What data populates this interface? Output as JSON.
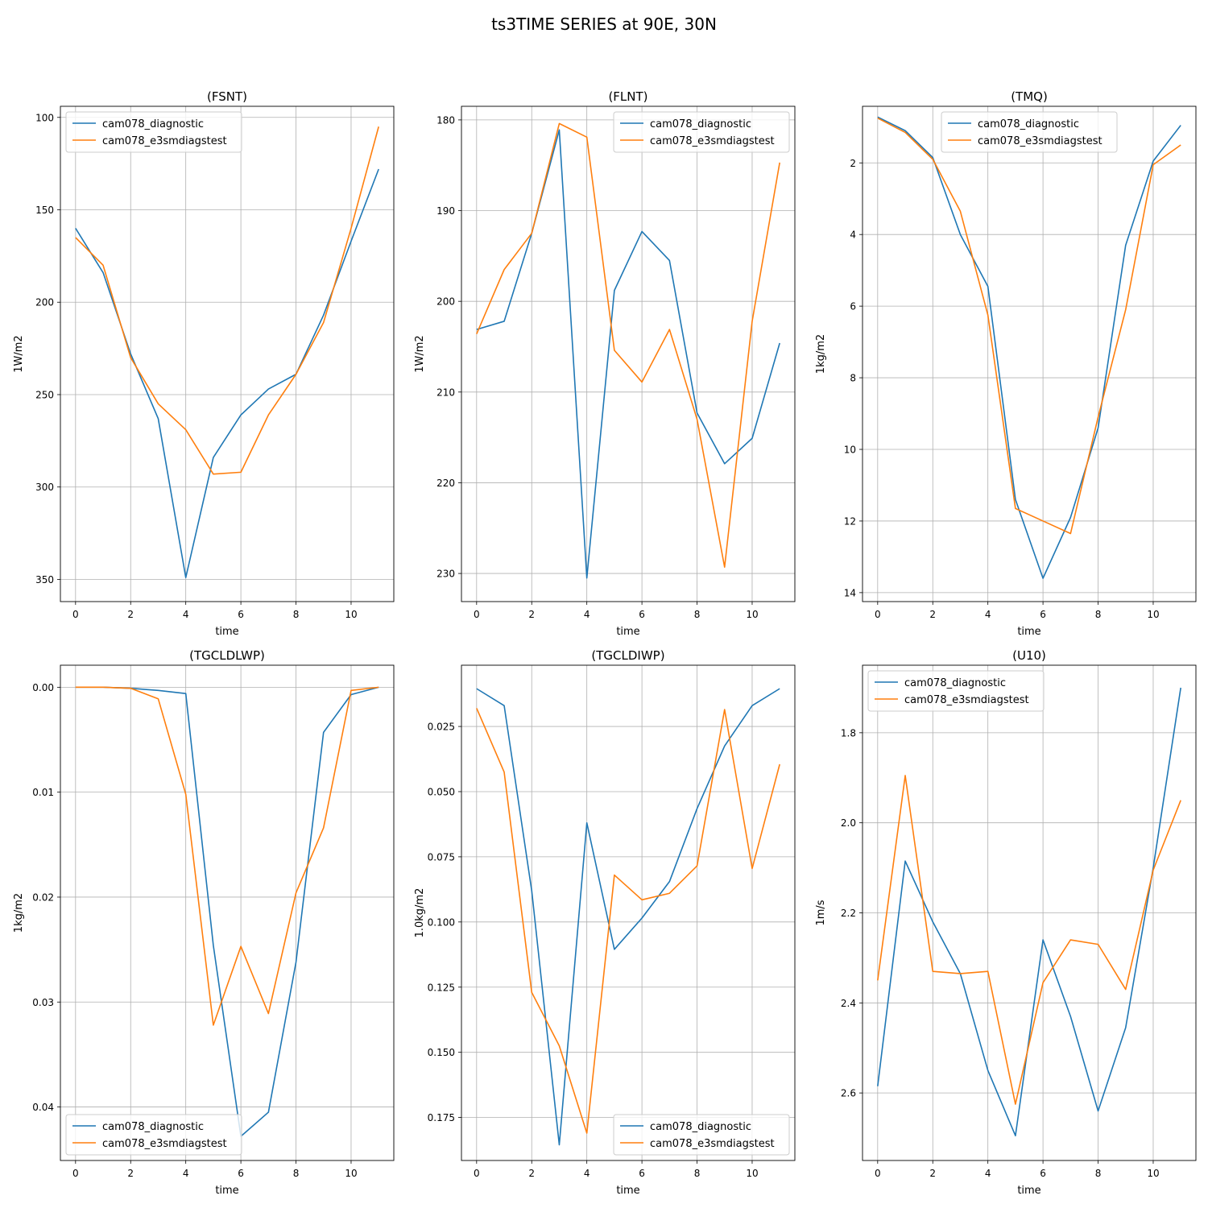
{
  "figure": {
    "title": "ts3TIME SERIES at 90E, 30N",
    "series_colors": {
      "cam078_diagnostic": "#1f77b4",
      "cam078_e3smdiagstest": "#ff7f0e"
    }
  },
  "chart_data": [
    {
      "type": "line",
      "title": "(FSNT)",
      "xlabel": "time",
      "ylabel": "1W/m2",
      "x": [
        0,
        1,
        2,
        3,
        4,
        5,
        6,
        7,
        8,
        9,
        10,
        11
      ],
      "xlim": [
        -0.55,
        11.55
      ],
      "ylim": [
        362,
        94
      ],
      "y_inverted": true,
      "xticks": [
        0,
        2,
        4,
        6,
        8,
        10
      ],
      "yticks": [
        100,
        150,
        200,
        250,
        300,
        350
      ],
      "ytick_labels": [
        "100",
        "150",
        "200",
        "250",
        "300",
        "350"
      ],
      "grid": true,
      "legend_loc": "upper-left",
      "series": [
        {
          "name": "cam078_diagnostic",
          "color": "#1f77b4",
          "values": [
            160,
            184,
            228,
            263,
            349,
            284,
            261,
            247,
            239,
            207,
            167,
            128
          ]
        },
        {
          "name": "cam078_e3smdiagstest",
          "color": "#ff7f0e",
          "values": [
            165,
            180,
            230,
            255,
            269,
            293,
            292,
            261,
            239,
            211,
            160,
            105
          ]
        }
      ]
    },
    {
      "type": "line",
      "title": "(FLNT)",
      "xlabel": "time",
      "ylabel": "1W/m2",
      "x": [
        0,
        1,
        2,
        3,
        4,
        5,
        6,
        7,
        8,
        9,
        10,
        11
      ],
      "xlim": [
        -0.55,
        11.55
      ],
      "ylim": [
        233.1,
        178.5
      ],
      "y_inverted": true,
      "xticks": [
        0,
        2,
        4,
        6,
        8,
        10
      ],
      "yticks": [
        180,
        190,
        200,
        210,
        220,
        230
      ],
      "ytick_labels": [
        "180",
        "190",
        "200",
        "210",
        "220",
        "230"
      ],
      "grid": true,
      "legend_loc": "upper-right",
      "series": [
        {
          "name": "cam078_diagnostic",
          "color": "#1f77b4",
          "values": [
            203.1,
            202.2,
            192.5,
            181.1,
            230.5,
            198.8,
            192.3,
            195.5,
            212.3,
            217.9,
            215.1,
            204.6
          ]
        },
        {
          "name": "cam078_e3smdiagstest",
          "color": "#ff7f0e",
          "values": [
            203.6,
            196.5,
            192.5,
            180.4,
            181.9,
            205.4,
            208.9,
            203.1,
            213.0,
            229.3,
            202.2,
            184.7
          ]
        }
      ]
    },
    {
      "type": "line",
      "title": "(TMQ)",
      "xlabel": "time",
      "ylabel": "1kg/m2",
      "x": [
        0,
        1,
        2,
        3,
        4,
        5,
        6,
        7,
        8,
        9,
        10,
        11
      ],
      "xlim": [
        -0.55,
        11.55
      ],
      "ylim": [
        14.25,
        0.42
      ],
      "y_inverted": true,
      "xticks": [
        0,
        2,
        4,
        6,
        8,
        10
      ],
      "yticks": [
        2,
        4,
        6,
        8,
        10,
        12,
        14
      ],
      "ytick_labels": [
        "2",
        "4",
        "6",
        "8",
        "10",
        "12",
        "14"
      ],
      "grid": true,
      "legend_loc": "upper-center",
      "series": [
        {
          "name": "cam078_diagnostic",
          "color": "#1f77b4",
          "values": [
            0.72,
            1.1,
            1.85,
            4.0,
            5.45,
            11.4,
            13.6,
            11.9,
            9.4,
            4.3,
            1.95,
            0.95
          ]
        },
        {
          "name": "cam078_e3smdiagstest",
          "color": "#ff7f0e",
          "values": [
            0.75,
            1.15,
            1.9,
            3.35,
            6.25,
            11.65,
            12.0,
            12.35,
            9.1,
            6.1,
            2.05,
            1.5
          ]
        }
      ]
    },
    {
      "type": "line",
      "title": "(TGCLDLWP)",
      "xlabel": "time",
      "ylabel": "1kg/m2",
      "x": [
        0,
        1,
        2,
        3,
        4,
        5,
        6,
        7,
        8,
        9,
        10,
        11
      ],
      "xlim": [
        -0.55,
        11.55
      ],
      "ylim": [
        0.0451,
        -0.0021
      ],
      "y_inverted": true,
      "xticks": [
        0,
        2,
        4,
        6,
        8,
        10
      ],
      "yticks": [
        0.0,
        0.01,
        0.02,
        0.03,
        0.04
      ],
      "ytick_labels": [
        "0.00",
        "0.01",
        "0.02",
        "0.03",
        "0.04"
      ],
      "grid": true,
      "legend_loc": "lower-left",
      "series": [
        {
          "name": "cam078_diagnostic",
          "color": "#1f77b4",
          "values": [
            0.0,
            0.0,
            0.0001,
            0.0003,
            0.0006,
            0.0246,
            0.0428,
            0.0405,
            0.0262,
            0.0043,
            0.0007,
            0.0
          ]
        },
        {
          "name": "cam078_e3smdiagstest",
          "color": "#ff7f0e",
          "values": [
            0.0,
            0.0,
            0.0001,
            0.0011,
            0.0102,
            0.0322,
            0.0247,
            0.0311,
            0.0196,
            0.0134,
            0.0003,
            0.0
          ]
        }
      ]
    },
    {
      "type": "line",
      "title": "(TGCLDIWP)",
      "xlabel": "time",
      "ylabel": "1.0kg/m2",
      "x": [
        0,
        1,
        2,
        3,
        4,
        5,
        6,
        7,
        8,
        9,
        10,
        11
      ],
      "xlim": [
        -0.55,
        11.55
      ],
      "ylim": [
        0.1915,
        0.0015
      ],
      "y_inverted": true,
      "xticks": [
        0,
        2,
        4,
        6,
        8,
        10
      ],
      "yticks": [
        0.025,
        0.05,
        0.075,
        0.1,
        0.125,
        0.15,
        0.175
      ],
      "ytick_labels": [
        "0.025",
        "0.050",
        "0.075",
        "0.100",
        "0.125",
        "0.150",
        "0.175"
      ],
      "grid": true,
      "legend_loc": "lower-right",
      "series": [
        {
          "name": "cam078_diagnostic",
          "color": "#1f77b4",
          "values": [
            0.0105,
            0.017,
            0.088,
            0.1855,
            0.062,
            0.1105,
            0.0985,
            0.0845,
            0.0565,
            0.0325,
            0.017,
            0.0105
          ]
        },
        {
          "name": "cam078_e3smdiagstest",
          "color": "#ff7f0e",
          "values": [
            0.018,
            0.0425,
            0.127,
            0.1475,
            0.181,
            0.082,
            0.0915,
            0.089,
            0.0785,
            0.0185,
            0.0795,
            0.0395
          ]
        }
      ]
    },
    {
      "type": "line",
      "title": "(U10)",
      "xlabel": "time",
      "ylabel": "1m/s",
      "x": [
        0,
        1,
        2,
        3,
        4,
        5,
        6,
        7,
        8,
        9,
        10,
        11
      ],
      "xlim": [
        -0.55,
        11.55
      ],
      "ylim": [
        2.75,
        1.65
      ],
      "y_inverted": true,
      "xticks": [
        0,
        2,
        4,
        6,
        8,
        10
      ],
      "yticks": [
        1.8,
        2.0,
        2.2,
        2.4,
        2.6
      ],
      "ytick_labels": [
        "1.8",
        "2.0",
        "2.2",
        "2.4",
        "2.6"
      ],
      "grid": true,
      "legend_loc": "upper-left",
      "series": [
        {
          "name": "cam078_diagnostic",
          "color": "#1f77b4",
          "values": [
            2.585,
            2.085,
            2.22,
            2.335,
            2.55,
            2.695,
            2.26,
            2.43,
            2.64,
            2.455,
            2.1,
            1.7
          ]
        },
        {
          "name": "cam078_e3smdiagstest",
          "color": "#ff7f0e",
          "values": [
            2.35,
            1.895,
            2.33,
            2.335,
            2.33,
            2.625,
            2.355,
            2.26,
            2.27,
            2.37,
            2.105,
            1.95
          ]
        }
      ]
    }
  ]
}
